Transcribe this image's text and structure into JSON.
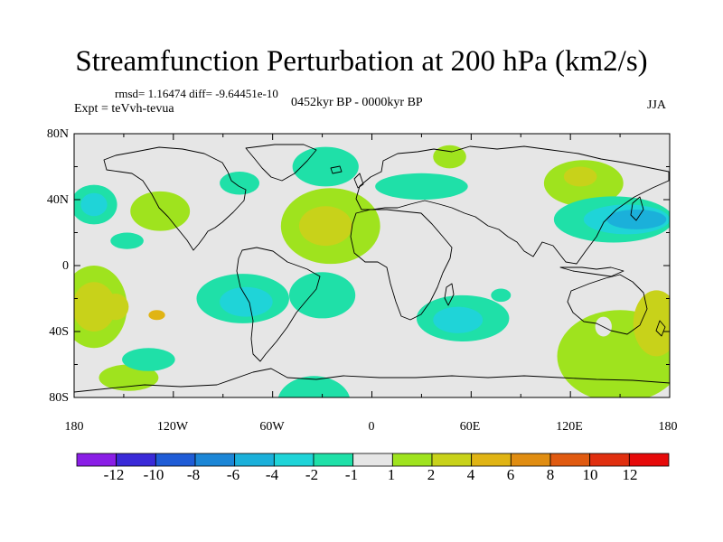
{
  "title": "Streamfunction Perturbation at 200 hPa (km2/s)",
  "rmsd_text": "rmsd= 1.16474 diff= -9.64451e-10",
  "experiment_text": "Expt = teVvh-tevua",
  "period_text": "0452kyr BP - 0000kyr BP",
  "season_text": "JJA",
  "y_tick_labels": [
    "80N",
    "40N",
    "0",
    "40S",
    "80S"
  ],
  "x_tick_labels": [
    "180",
    "120W",
    "60W",
    "0",
    "60E",
    "120E",
    "180"
  ],
  "colorbar": {
    "labels": [
      "-12",
      "-10",
      "-8",
      "-6",
      "-4",
      "-2",
      "-1",
      "1",
      "2",
      "4",
      "6",
      "8",
      "10",
      "12"
    ],
    "colors": [
      "#8a1ee6",
      "#3a2ad8",
      "#1f5cd6",
      "#1c86d6",
      "#1bb0da",
      "#1fd4d8",
      "#1fe0a8",
      "#e6e6e6",
      "#9fe31e",
      "#c8d21a",
      "#e0b414",
      "#e08d12",
      "#e05a10",
      "#e02f0f",
      "#e60a0a"
    ]
  },
  "anomaly_regions": [
    {
      "lon": -168,
      "lat": 37,
      "rlon": 14,
      "rlat": 12,
      "color": "#1fe0a8"
    },
    {
      "lon": -168,
      "lat": 37,
      "rlon": 8,
      "rlat": 7,
      "color": "#1fd4d8"
    },
    {
      "lon": -148,
      "lat": 15,
      "rlon": 10,
      "rlat": 5,
      "color": "#1fe0a8"
    },
    {
      "lon": -128,
      "lat": 33,
      "rlon": 18,
      "rlat": 12,
      "color": "#9fe31e"
    },
    {
      "lon": -80,
      "lat": 50,
      "rlon": 12,
      "rlat": 7,
      "color": "#1fe0a8"
    },
    {
      "lon": -28,
      "lat": 60,
      "rlon": 20,
      "rlat": 12,
      "color": "#1fe0a8"
    },
    {
      "lon": -25,
      "lat": 24,
      "rlon": 30,
      "rlat": 23,
      "color": "#9fe31e"
    },
    {
      "lon": -28,
      "lat": 24,
      "rlon": 16,
      "rlat": 12,
      "color": "#c8d21a"
    },
    {
      "lon": 30,
      "lat": 48,
      "rlon": 28,
      "rlat": 8,
      "color": "#1fe0a8"
    },
    {
      "lon": 47,
      "lat": 66,
      "rlon": 10,
      "rlat": 7,
      "color": "#9fe31e"
    },
    {
      "lon": 128,
      "lat": 50,
      "rlon": 24,
      "rlat": 14,
      "color": "#9fe31e"
    },
    {
      "lon": 126,
      "lat": 54,
      "rlon": 10,
      "rlat": 6,
      "color": "#c8d21a"
    },
    {
      "lon": 146,
      "lat": 28,
      "rlon": 36,
      "rlat": 14,
      "color": "#1fe0a8"
    },
    {
      "lon": 154,
      "lat": 28,
      "rlon": 26,
      "rlat": 9,
      "color": "#1fd4d8"
    },
    {
      "lon": 160,
      "lat": 28,
      "rlon": 18,
      "rlat": 6,
      "color": "#1bb0da"
    },
    {
      "lon": -168,
      "lat": -25,
      "rlon": 20,
      "rlat": 25,
      "color": "#9fe31e"
    },
    {
      "lon": -168,
      "lat": -25,
      "rlon": 13,
      "rlat": 15,
      "color": "#c8d21a"
    },
    {
      "lon": -155,
      "lat": -25,
      "rlon": 8,
      "rlat": 8,
      "color": "#c8d21a"
    },
    {
      "lon": -130,
      "lat": -30,
      "rlon": 5,
      "rlat": 3,
      "color": "#e0b414"
    },
    {
      "lon": -78,
      "lat": -20,
      "rlon": 28,
      "rlat": 15,
      "color": "#1fe0a8"
    },
    {
      "lon": -76,
      "lat": -22,
      "rlon": 16,
      "rlat": 9,
      "color": "#1fd4d8"
    },
    {
      "lon": -30,
      "lat": -18,
      "rlon": 20,
      "rlat": 14,
      "color": "#1fe0a8"
    },
    {
      "lon": -147,
      "lat": -68,
      "rlon": 18,
      "rlat": 8,
      "color": "#9fe31e"
    },
    {
      "lon": -135,
      "lat": -57,
      "rlon": 16,
      "rlat": 7,
      "color": "#1fe0a8"
    },
    {
      "lon": -35,
      "lat": -83,
      "rlon": 22,
      "rlat": 16,
      "color": "#1fe0a8"
    },
    {
      "lon": 55,
      "lat": -32,
      "rlon": 28,
      "rlat": 14,
      "color": "#1fe0a8"
    },
    {
      "lon": 52,
      "lat": -33,
      "rlon": 15,
      "rlat": 8,
      "color": "#1fd4d8"
    },
    {
      "lon": 78,
      "lat": -18,
      "rlon": 6,
      "rlat": 4,
      "color": "#1fe0a8"
    },
    {
      "lon": 150,
      "lat": -55,
      "rlon": 38,
      "rlat": 28,
      "color": "#9fe31e"
    },
    {
      "lon": 172,
      "lat": -35,
      "rlon": 14,
      "rlat": 20,
      "color": "#c8d21a"
    },
    {
      "lon": 140,
      "lat": -37,
      "rlon": 5,
      "rlat": 6,
      "color": "#e6e6e6"
    }
  ]
}
